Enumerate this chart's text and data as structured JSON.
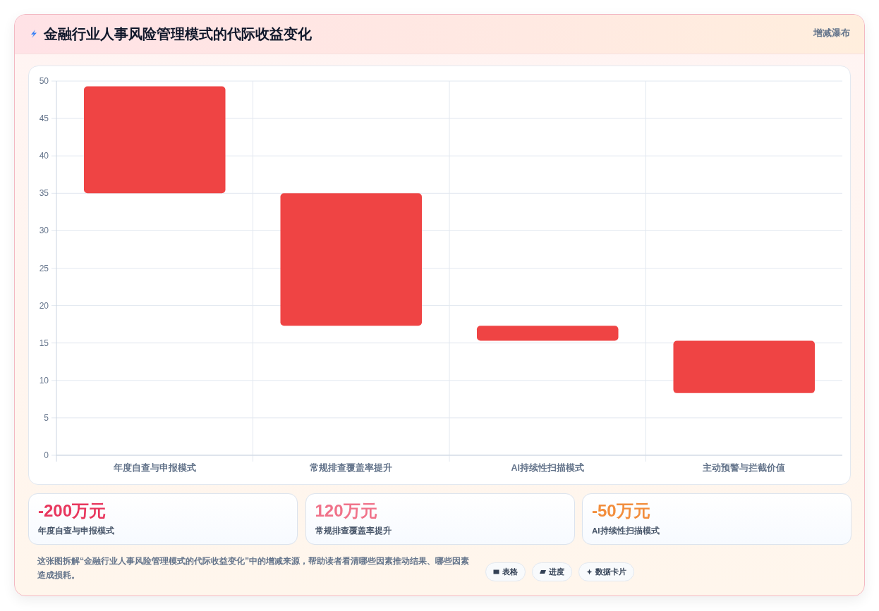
{
  "chart_data": [
    {
      "type": "bar",
      "title": "金融行业人事风险管理模式的代际收益变化",
      "subtitle": "增减瀑布",
      "categories": [
        "年度自查与申报模式",
        "常规排查覆盖率提升",
        "AI持续性扫描模式",
        "主动预警与拦截价值"
      ],
      "base": [
        35,
        17.3,
        15.3,
        8.3
      ],
      "values": [
        14.3,
        17.7,
        2,
        7
      ],
      "color": "#ef4444",
      "ylim": [
        0,
        50
      ],
      "yticks": [
        0,
        5,
        10,
        15,
        20,
        25,
        30,
        35,
        40,
        45,
        50
      ],
      "grid": true
    },
    {
      "type": "other",
      "annotations": [
        "-200万元",
        "年度自查与申报模式",
        "120万元",
        "常规排查覆盖率提升",
        "-50万元",
        "AI持续性扫描模式",
        "这张图拆解“金融行业人事风险管理模式的代际收益变化”中的增减来源，帮助读者看清哪些因素推动结果、哪些因素造成损耗。",
        "表格",
        "进度",
        "数据卡片"
      ]
    }
  ]
}
